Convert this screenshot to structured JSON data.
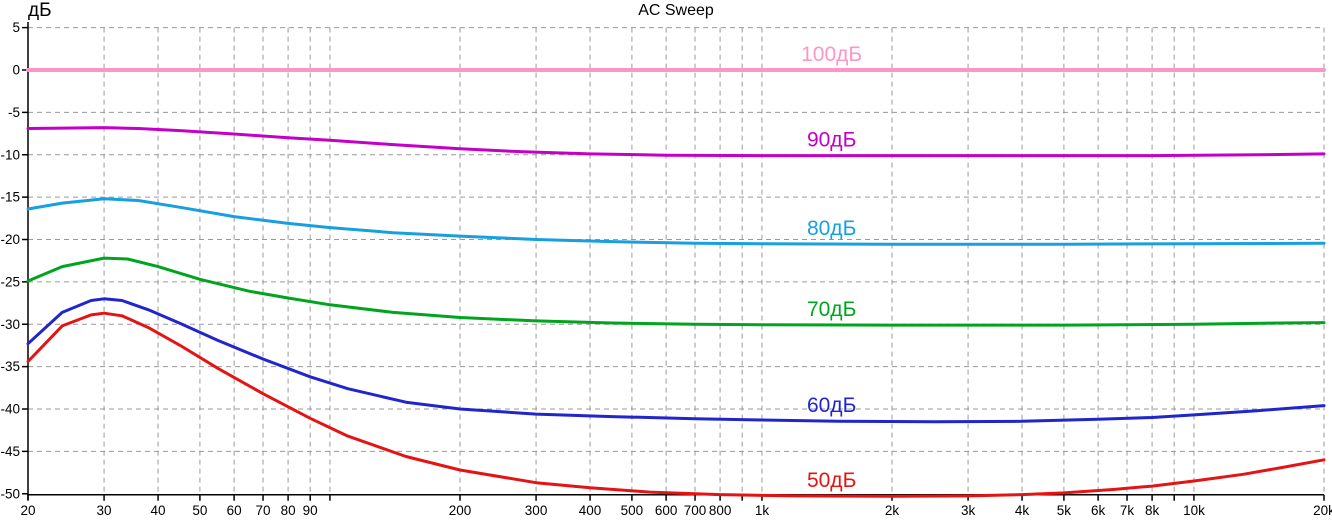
{
  "chart_data": {
    "type": "line",
    "title": "AC Sweep",
    "ylabel": "дБ",
    "x_scale": "log",
    "x_range_hz": [
      20,
      20000
    ],
    "y_range_db": [
      -50,
      5
    ],
    "grid": true,
    "grid_color": "#9a9a9a",
    "axis_color": "#000000",
    "label_anchor_hz": 1450,
    "x_gridlines_hz": [
      20,
      30,
      40,
      50,
      60,
      70,
      80,
      90,
      100,
      200,
      300,
      400,
      500,
      600,
      700,
      800,
      900,
      1000,
      2000,
      3000,
      4000,
      5000,
      6000,
      7000,
      8000,
      9000,
      10000,
      20000
    ],
    "x_tick_labels": [
      {
        "hz": 20,
        "label": "20"
      },
      {
        "hz": 30,
        "label": "30"
      },
      {
        "hz": 40,
        "label": "40"
      },
      {
        "hz": 50,
        "label": "50"
      },
      {
        "hz": 60,
        "label": "60"
      },
      {
        "hz": 70,
        "label": "70"
      },
      {
        "hz": 80,
        "label": "80"
      },
      {
        "hz": 90,
        "label": "90"
      },
      {
        "hz": 200,
        "label": "200"
      },
      {
        "hz": 300,
        "label": "300"
      },
      {
        "hz": 400,
        "label": "400"
      },
      {
        "hz": 500,
        "label": "500"
      },
      {
        "hz": 600,
        "label": "600"
      },
      {
        "hz": 700,
        "label": "700"
      },
      {
        "hz": 800,
        "label": "800"
      },
      {
        "hz": 1000,
        "label": "1k"
      },
      {
        "hz": 2000,
        "label": "2k"
      },
      {
        "hz": 3000,
        "label": "3k"
      },
      {
        "hz": 4000,
        "label": "4k"
      },
      {
        "hz": 5000,
        "label": "5k"
      },
      {
        "hz": 6000,
        "label": "6k"
      },
      {
        "hz": 7000,
        "label": "7k"
      },
      {
        "hz": 8000,
        "label": "8k"
      },
      {
        "hz": 10000,
        "label": "10k"
      },
      {
        "hz": 20000,
        "label": "20k"
      }
    ],
    "y_ticks": [
      {
        "db": 5,
        "label": "5"
      },
      {
        "db": 0,
        "label": "0"
      },
      {
        "db": -5,
        "label": "-5"
      },
      {
        "db": -10,
        "label": "-10"
      },
      {
        "db": -15,
        "label": "-15"
      },
      {
        "db": -20,
        "label": "-20"
      },
      {
        "db": -25,
        "label": "-25"
      },
      {
        "db": -30,
        "label": "-30"
      },
      {
        "db": -35,
        "label": "-35"
      },
      {
        "db": -40,
        "label": "-40"
      },
      {
        "db": -45,
        "label": "-45"
      },
      {
        "db": -50,
        "label": "-50"
      }
    ],
    "series": [
      {
        "name": "100dB",
        "label": "100дБ",
        "color": "#ff94c9",
        "line_width": 4,
        "points": [
          [
            20,
            0
          ],
          [
            20000,
            0
          ]
        ]
      },
      {
        "name": "90dB",
        "label": "90дБ",
        "color": "#c300c8",
        "line_width": 3,
        "points": [
          [
            20,
            -6.9
          ],
          [
            24,
            -6.85
          ],
          [
            30,
            -6.8
          ],
          [
            36,
            -6.9
          ],
          [
            45,
            -7.15
          ],
          [
            60,
            -7.55
          ],
          [
            80,
            -8.0
          ],
          [
            100,
            -8.3
          ],
          [
            140,
            -8.8
          ],
          [
            200,
            -9.3
          ],
          [
            280,
            -9.65
          ],
          [
            400,
            -9.9
          ],
          [
            600,
            -10.05
          ],
          [
            1000,
            -10.1
          ],
          [
            2000,
            -10.1
          ],
          [
            4000,
            -10.1
          ],
          [
            8000,
            -10.1
          ],
          [
            14000,
            -10.0
          ],
          [
            20000,
            -9.9
          ]
        ]
      },
      {
        "name": "80dB",
        "label": "80дБ",
        "color": "#189fe0",
        "line_width": 3,
        "points": [
          [
            20,
            -16.4
          ],
          [
            24,
            -15.7
          ],
          [
            30,
            -15.2
          ],
          [
            36,
            -15.4
          ],
          [
            45,
            -16.2
          ],
          [
            60,
            -17.3
          ],
          [
            80,
            -18.1
          ],
          [
            100,
            -18.6
          ],
          [
            140,
            -19.2
          ],
          [
            200,
            -19.6
          ],
          [
            300,
            -20.0
          ],
          [
            450,
            -20.25
          ],
          [
            700,
            -20.45
          ],
          [
            1000,
            -20.5
          ],
          [
            2000,
            -20.55
          ],
          [
            5000,
            -20.55
          ],
          [
            10000,
            -20.5
          ],
          [
            20000,
            -20.45
          ]
        ]
      },
      {
        "name": "70dB",
        "label": "70дБ",
        "color": "#00a41e",
        "line_width": 3,
        "points": [
          [
            20,
            -24.9
          ],
          [
            24,
            -23.2
          ],
          [
            30,
            -22.2
          ],
          [
            34,
            -22.3
          ],
          [
            40,
            -23.2
          ],
          [
            50,
            -24.7
          ],
          [
            65,
            -26.1
          ],
          [
            80,
            -26.9
          ],
          [
            100,
            -27.7
          ],
          [
            140,
            -28.6
          ],
          [
            200,
            -29.2
          ],
          [
            300,
            -29.6
          ],
          [
            450,
            -29.85
          ],
          [
            700,
            -30.0
          ],
          [
            1000,
            -30.05
          ],
          [
            2000,
            -30.1
          ],
          [
            5000,
            -30.1
          ],
          [
            10000,
            -30.0
          ],
          [
            16000,
            -29.85
          ],
          [
            20000,
            -29.8
          ]
        ]
      },
      {
        "name": "60dB",
        "label": "60дБ",
        "color": "#2026cc",
        "line_width": 3,
        "points": [
          [
            20,
            -32.3
          ],
          [
            24,
            -28.6
          ],
          [
            28,
            -27.2
          ],
          [
            30,
            -27.0
          ],
          [
            33,
            -27.2
          ],
          [
            38,
            -28.3
          ],
          [
            45,
            -29.9
          ],
          [
            55,
            -31.9
          ],
          [
            70,
            -34.1
          ],
          [
            90,
            -36.2
          ],
          [
            110,
            -37.6
          ],
          [
            150,
            -39.2
          ],
          [
            200,
            -40.0
          ],
          [
            300,
            -40.6
          ],
          [
            450,
            -40.9
          ],
          [
            700,
            -41.15
          ],
          [
            1000,
            -41.3
          ],
          [
            1500,
            -41.45
          ],
          [
            2500,
            -41.5
          ],
          [
            4000,
            -41.45
          ],
          [
            6000,
            -41.2
          ],
          [
            8000,
            -41.0
          ],
          [
            10000,
            -40.7
          ],
          [
            14000,
            -40.2
          ],
          [
            20000,
            -39.6
          ]
        ]
      },
      {
        "name": "50dB",
        "label": "50дБ",
        "color": "#e41414",
        "line_width": 3,
        "points": [
          [
            20,
            -34.4
          ],
          [
            24,
            -30.2
          ],
          [
            28,
            -28.9
          ],
          [
            30,
            -28.7
          ],
          [
            33,
            -29.0
          ],
          [
            38,
            -30.4
          ],
          [
            45,
            -32.5
          ],
          [
            55,
            -35.2
          ],
          [
            70,
            -38.2
          ],
          [
            90,
            -41.1
          ],
          [
            110,
            -43.2
          ],
          [
            150,
            -45.6
          ],
          [
            200,
            -47.2
          ],
          [
            300,
            -48.7
          ],
          [
            400,
            -49.3
          ],
          [
            550,
            -49.8
          ],
          [
            800,
            -50.1
          ],
          [
            1200,
            -50.25
          ],
          [
            2000,
            -50.3
          ],
          [
            3000,
            -50.25
          ],
          [
            4000,
            -50.1
          ],
          [
            5000,
            -49.9
          ],
          [
            6500,
            -49.5
          ],
          [
            8000,
            -49.1
          ],
          [
            10000,
            -48.5
          ],
          [
            13000,
            -47.7
          ],
          [
            16000,
            -46.9
          ],
          [
            20000,
            -46.0
          ]
        ]
      }
    ]
  }
}
